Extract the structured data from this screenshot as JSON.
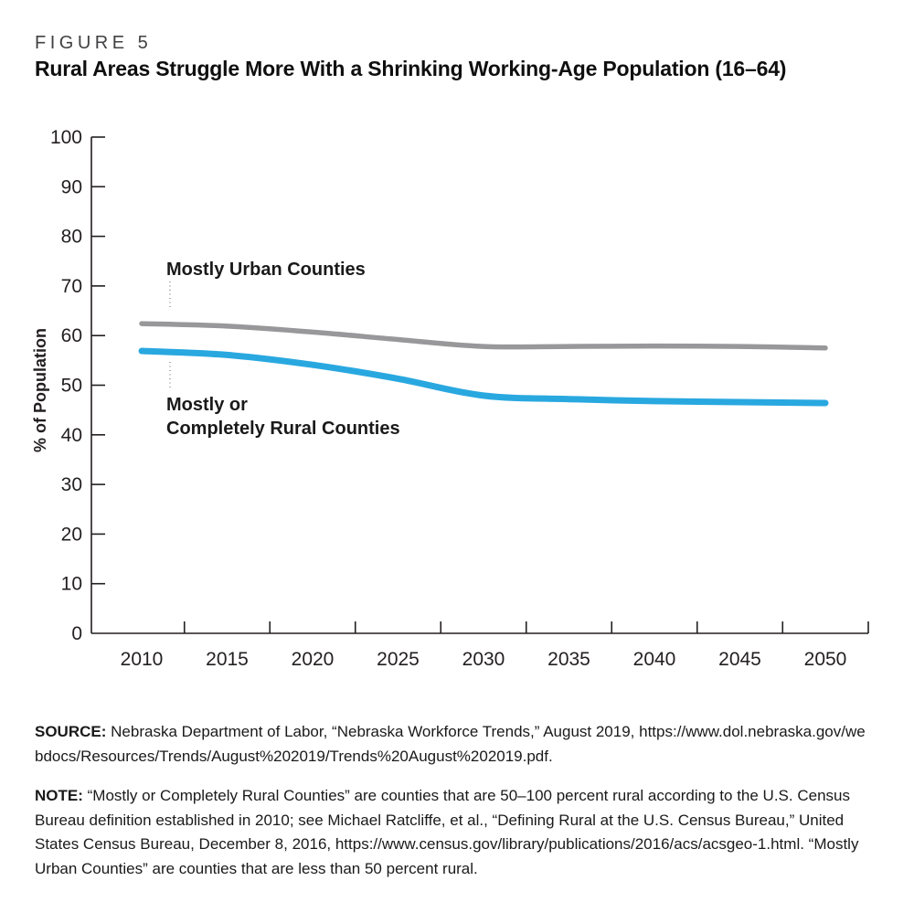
{
  "figure": {
    "label": "FIGURE 5",
    "title": "Rural Areas Struggle More With a Shrinking Working-Age Population (16–64)"
  },
  "chart_data": {
    "type": "line",
    "x_years": [
      2010,
      2015,
      2020,
      2025,
      2030,
      2035,
      2040,
      2045,
      2050
    ],
    "ylabel": "% of Population",
    "ylim": [
      0,
      100
    ],
    "yticks": [
      0,
      10,
      20,
      30,
      40,
      50,
      60,
      70,
      80,
      90,
      100
    ],
    "grid": false,
    "legend": "direct-labels",
    "series": [
      {
        "id": "urban",
        "name": "Mostly Urban Counties",
        "color": "#98989A",
        "values": [
          62.4,
          61.9,
          60.7,
          59.2,
          57.8,
          57.8,
          57.9,
          57.8,
          57.5
        ]
      },
      {
        "id": "rural",
        "name": "Mostly or Completely Rural Counties",
        "color": "#29A8E0",
        "values": [
          56.9,
          56.1,
          54.1,
          51.3,
          47.9,
          47.2,
          46.8,
          46.6,
          46.4
        ]
      }
    ],
    "annotations": [
      {
        "target": "urban",
        "text": "Mostly Urban Counties"
      },
      {
        "target": "rural",
        "line1": "Mostly or",
        "line2": "Completely Rural Counties"
      }
    ]
  },
  "source": {
    "label": "SOURCE:",
    "text": "Nebraska Department of Labor, “Nebraska Workforce Trends,” August 2019, https://www.dol.nebraska.gov/webdocs/Resources/Trends/August%202019/Trends%20August%202019.pdf."
  },
  "note": {
    "label": "NOTE:",
    "text": "“Mostly or Completely Rural Counties” are counties that are 50–100 percent rural according to the U.S. Census Bureau definition established in 2010; see Michael Ratcliffe, et al., “Defining Rural at the U.S. Census Bureau,” United States Census Bureau, December 8, 2016, https://www.census.gov/library/publications/2016/acs/acsgeo-1.html. “Mostly Urban Counties” are counties that are less than 50 percent rural."
  }
}
